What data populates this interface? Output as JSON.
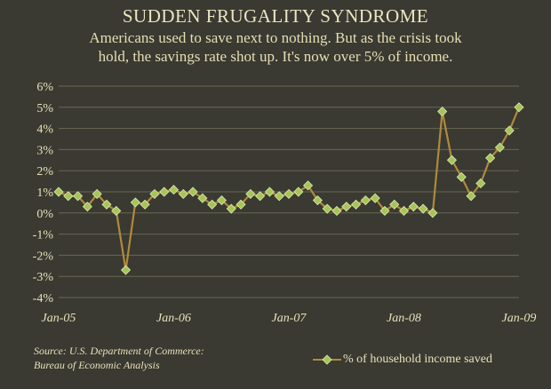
{
  "header": {
    "title": "SUDDEN FRUGALITY SYNDROME",
    "subtitle_line1": "Americans used to save next to nothing. But as the crisis took",
    "subtitle_line2": "hold, the savings rate shot up. It's now over 5% of income."
  },
  "footer": {
    "source_line1": "Source: U.S. Department of Commerce:",
    "source_line2": "Bureau of Economic Analysis"
  },
  "colors": {
    "background": "#3a3932",
    "line": "#b08a3c",
    "marker": "#a6c45a",
    "marker_edge": "#dcecae",
    "gridline": "#6a6852",
    "text": "#e8e2b8"
  },
  "chart_data": {
    "type": "line",
    "title": "SUDDEN FRUGALITY SYNDROME",
    "subtitle": "Americans used to save next to nothing. But as the crisis took hold, the savings rate shot up. It's now over 5% of income.",
    "xlabel": "",
    "ylabel": "",
    "ylim": [
      -4,
      6
    ],
    "y_ticks": [
      "6%",
      "5%",
      "4%",
      "3%",
      "2%",
      "1%",
      "0%",
      "-1%",
      "-2%",
      "-3%",
      "-4%"
    ],
    "y_tick_values": [
      6,
      5,
      4,
      3,
      2,
      1,
      0,
      -1,
      -2,
      -3,
      -4
    ],
    "x_ticks": [
      "Jan-05",
      "Jan-06",
      "Jan-07",
      "Jan-08",
      "Jan-09"
    ],
    "x_tick_months": [
      0,
      12,
      24,
      36,
      48
    ],
    "grid": "horizontal",
    "legend_position": "bottom-right",
    "series": [
      {
        "name": "% of household income saved",
        "x": [
          "Jan-05",
          "Feb-05",
          "Mar-05",
          "Apr-05",
          "May-05",
          "Jun-05",
          "Jul-05",
          "Aug-05",
          "Sep-05",
          "Oct-05",
          "Nov-05",
          "Dec-05",
          "Jan-06",
          "Feb-06",
          "Mar-06",
          "Apr-06",
          "May-06",
          "Jun-06",
          "Jul-06",
          "Aug-06",
          "Sep-06",
          "Oct-06",
          "Nov-06",
          "Dec-06",
          "Jan-07",
          "Feb-07",
          "Mar-07",
          "Apr-07",
          "May-07",
          "Jun-07",
          "Jul-07",
          "Aug-07",
          "Sep-07",
          "Oct-07",
          "Nov-07",
          "Dec-07",
          "Jan-08",
          "Feb-08",
          "Mar-08",
          "Apr-08",
          "May-08",
          "Jun-08",
          "Jul-08",
          "Aug-08",
          "Sep-08",
          "Oct-08",
          "Nov-08",
          "Dec-08",
          "Jan-09"
        ],
        "values": [
          1.0,
          0.8,
          0.8,
          0.3,
          0.9,
          0.4,
          0.1,
          -2.7,
          0.5,
          0.4,
          0.9,
          1.0,
          1.1,
          0.9,
          1.0,
          0.7,
          0.4,
          0.6,
          0.2,
          0.4,
          0.9,
          0.8,
          1.0,
          0.8,
          0.9,
          1.0,
          1.3,
          0.6,
          0.2,
          0.1,
          0.3,
          0.4,
          0.6,
          0.7,
          0.1,
          0.4,
          0.1,
          0.3,
          0.2,
          0.0,
          4.8,
          2.5,
          1.7,
          0.8,
          1.4,
          2.6,
          3.1,
          3.9,
          5.0
        ]
      }
    ]
  }
}
